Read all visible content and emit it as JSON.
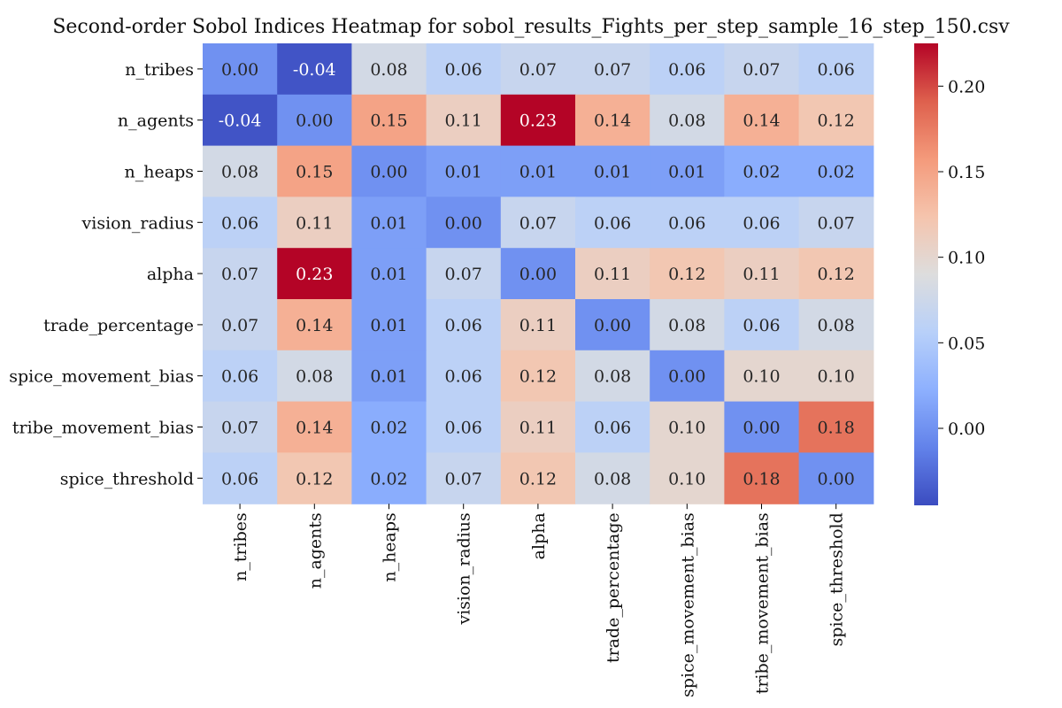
{
  "chart_data": {
    "type": "heatmap",
    "title": "Second-order Sobol Indices Heatmap for sobol_results_Fights_per_step_sample_16_step_150.csv",
    "row_labels": [
      "n_tribes",
      "n_agents",
      "n_heaps",
      "vision_radius",
      "alpha",
      "trade_percentage",
      "spice_movement_bias",
      "tribe_movement_bias",
      "spice_threshold"
    ],
    "col_labels": [
      "n_tribes",
      "n_agents",
      "n_heaps",
      "vision_radius",
      "alpha",
      "trade_percentage",
      "spice_movement_bias",
      "tribe_movement_bias",
      "spice_threshold"
    ],
    "values": [
      [
        0.0,
        -0.04,
        0.08,
        0.06,
        0.07,
        0.07,
        0.06,
        0.07,
        0.06
      ],
      [
        -0.04,
        0.0,
        0.15,
        0.11,
        0.23,
        0.14,
        0.08,
        0.14,
        0.12
      ],
      [
        0.08,
        0.15,
        0.0,
        0.01,
        0.01,
        0.01,
        0.01,
        0.02,
        0.02
      ],
      [
        0.06,
        0.11,
        0.01,
        0.0,
        0.07,
        0.06,
        0.06,
        0.06,
        0.07
      ],
      [
        0.07,
        0.23,
        0.01,
        0.07,
        0.0,
        0.11,
        0.12,
        0.11,
        0.12
      ],
      [
        0.07,
        0.14,
        0.01,
        0.06,
        0.11,
        0.0,
        0.08,
        0.06,
        0.08
      ],
      [
        0.06,
        0.08,
        0.01,
        0.06,
        0.12,
        0.08,
        0.0,
        0.1,
        0.1
      ],
      [
        0.07,
        0.14,
        0.02,
        0.06,
        0.11,
        0.06,
        0.1,
        0.0,
        0.18
      ],
      [
        0.06,
        0.12,
        0.02,
        0.07,
        0.12,
        0.08,
        0.1,
        0.18,
        0.0
      ]
    ],
    "value_labels": [
      [
        "0.00",
        "-0.04",
        "0.08",
        "0.06",
        "0.07",
        "0.07",
        "0.06",
        "0.07",
        "0.06"
      ],
      [
        "-0.04",
        "0.00",
        "0.15",
        "0.11",
        "0.23",
        "0.14",
        "0.08",
        "0.14",
        "0.12"
      ],
      [
        "0.08",
        "0.15",
        "0.00",
        "0.01",
        "0.01",
        "0.01",
        "0.01",
        "0.02",
        "0.02"
      ],
      [
        "0.06",
        "0.11",
        "0.01",
        "0.00",
        "0.07",
        "0.06",
        "0.06",
        "0.06",
        "0.07"
      ],
      [
        "0.07",
        "0.23",
        "0.01",
        "0.07",
        "0.00",
        "0.11",
        "0.12",
        "0.11",
        "0.12"
      ],
      [
        "0.07",
        "0.14",
        "0.01",
        "0.06",
        "0.11",
        "0.00",
        "0.08",
        "0.06",
        "0.08"
      ],
      [
        "0.06",
        "0.08",
        "0.01",
        "0.06",
        "0.12",
        "0.08",
        "0.00",
        "0.10",
        "0.10"
      ],
      [
        "0.07",
        "0.14",
        "0.02",
        "0.06",
        "0.11",
        "0.06",
        "0.10",
        "0.00",
        "0.18"
      ],
      [
        "0.06",
        "0.12",
        "0.02",
        "0.07",
        "0.12",
        "0.08",
        "0.10",
        "0.18",
        "0.00"
      ]
    ],
    "colormap": "coolwarm",
    "vmin": -0.045,
    "vmax": 0.225,
    "colorbar_ticks": [
      0.0,
      0.05,
      0.1,
      0.15,
      0.2
    ],
    "colorbar_tick_labels": [
      "0.00",
      "0.05",
      "0.10",
      "0.15",
      "0.20"
    ],
    "colorbar_position": "right",
    "annotated": true,
    "grid": false
  }
}
